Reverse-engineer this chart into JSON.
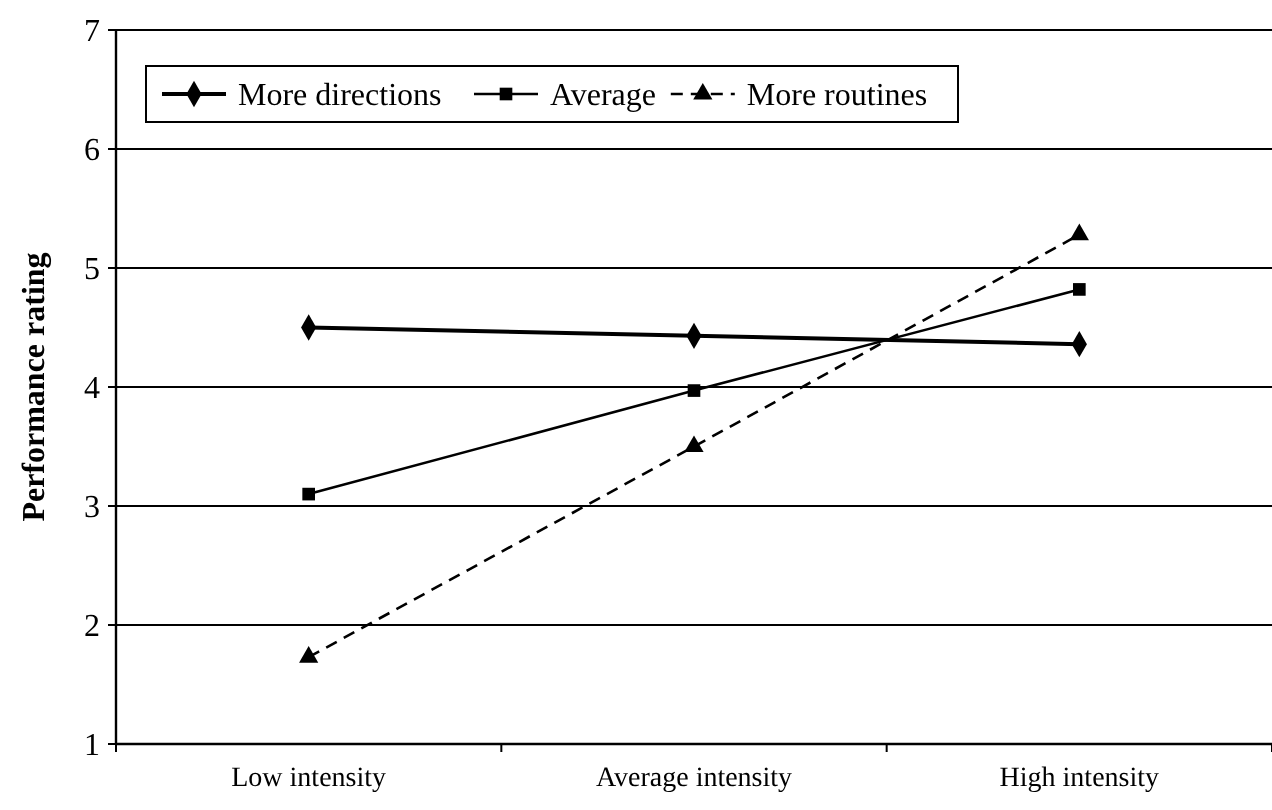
{
  "chart_data": {
    "type": "line",
    "ylabel": "Performance rating",
    "categories": [
      "Low intensity",
      "Average intensity",
      "High intensity"
    ],
    "series": [
      {
        "name": "More directions",
        "color": "#000000",
        "values": [
          4.5,
          4.43,
          4.36
        ],
        "marker": "diamond",
        "line_style": "solid"
      },
      {
        "name": "Average",
        "color": "#000000",
        "values": [
          3.1,
          3.97,
          4.82
        ],
        "marker": "square",
        "line_style": "solid"
      },
      {
        "name": "More routines",
        "color": "#000000",
        "values": [
          1.73,
          3.5,
          5.28
        ],
        "marker": "triangle",
        "line_style": "dashed"
      }
    ],
    "ylim": [
      1,
      7
    ],
    "yticks": [
      1,
      2,
      3,
      4,
      5,
      6,
      7
    ],
    "grid": "y",
    "legend": "top left"
  }
}
